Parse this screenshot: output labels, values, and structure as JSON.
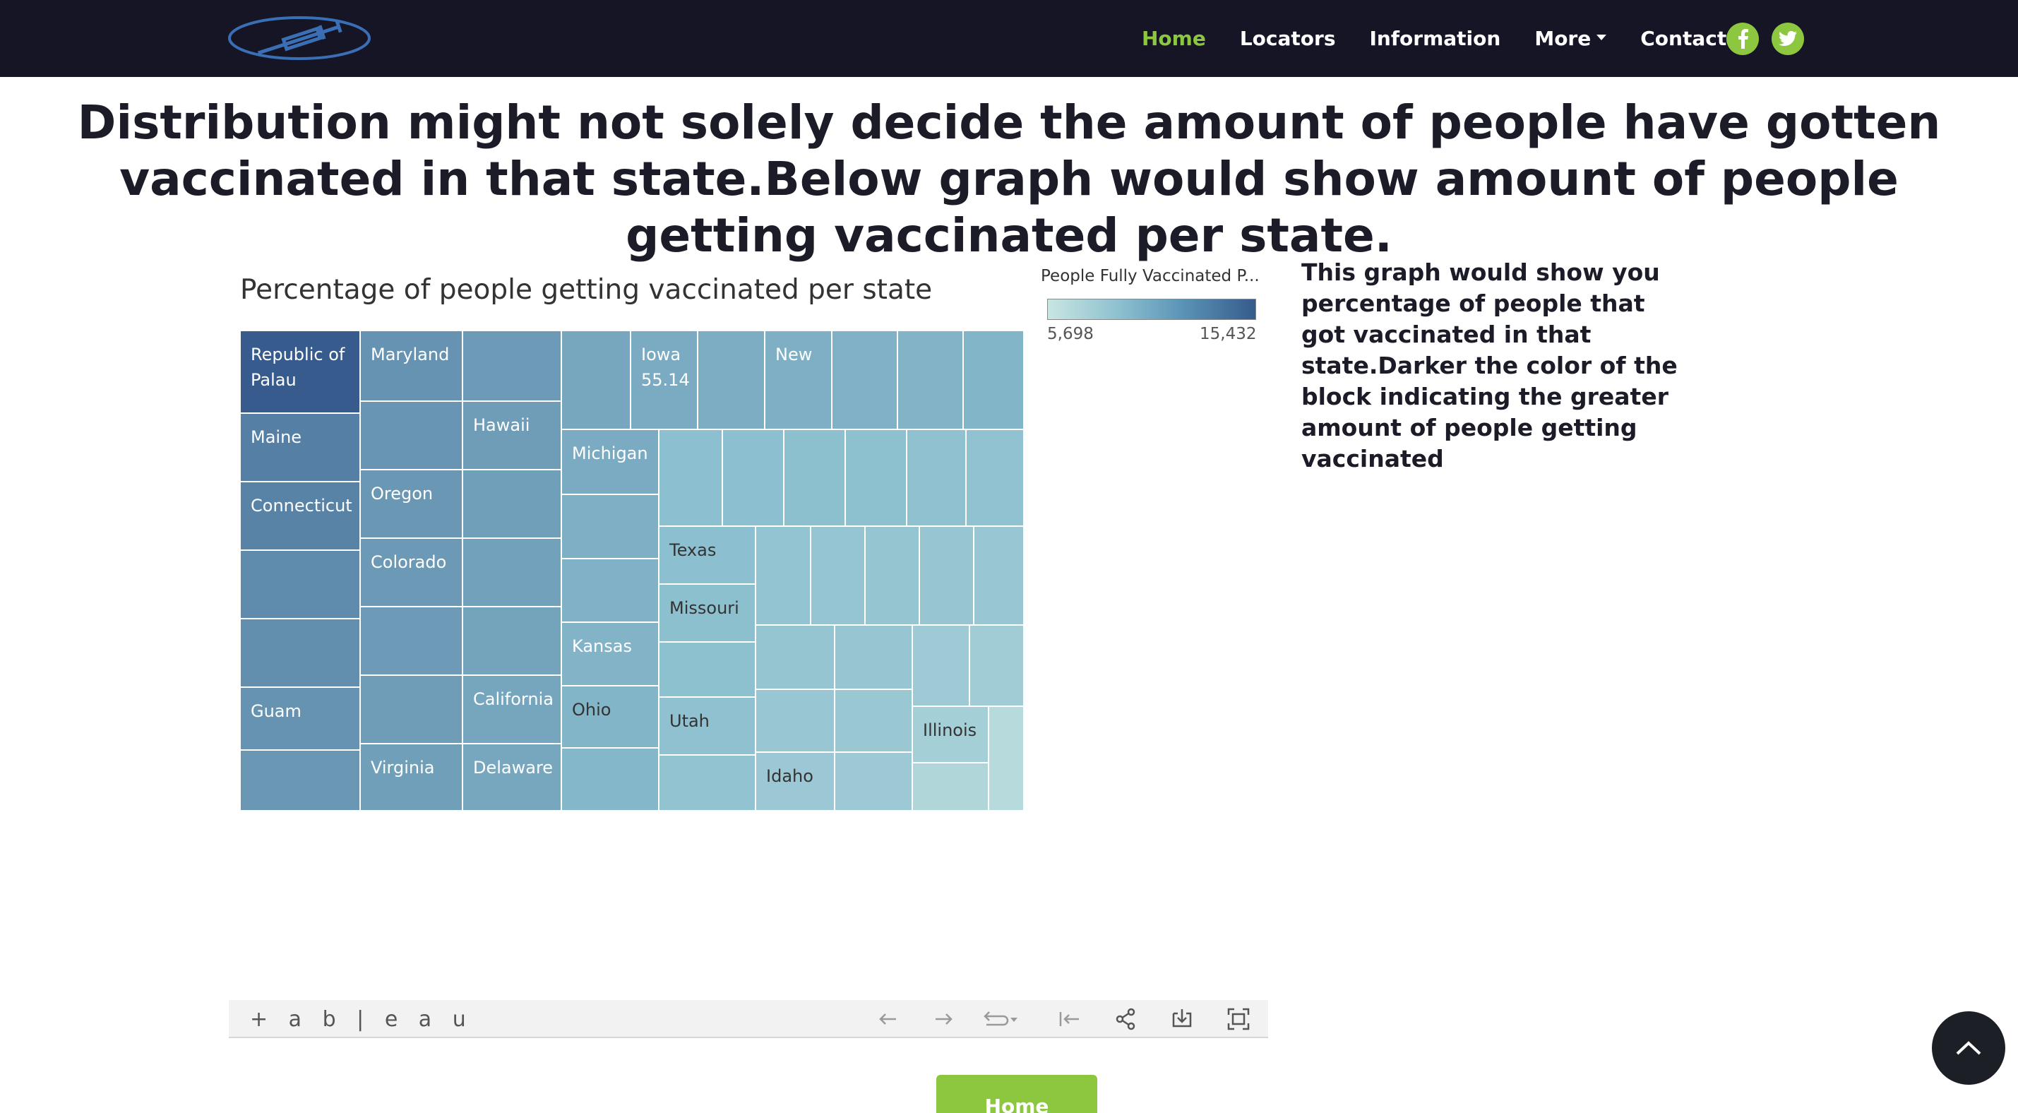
{
  "nav": {
    "links": [
      "Home",
      "Locators",
      "Information",
      "More",
      "Contact"
    ],
    "active": "Home",
    "social_icons": [
      "facebook-icon",
      "twitter-icon"
    ],
    "accent_color": "#8dc63f",
    "background_color": "#151525"
  },
  "headline": "Distribution might not solely decide the amount of people have gotten vaccinated in that state.Below graph would show amount of people getting vaccinated per state.",
  "side_text": "This graph would show you percentage of people that got vaccinated in that state.Darker the color of the block indicating the greater amount of people getting vaccinated",
  "chart_data": {
    "type": "heatmap",
    "title": "Percentage of people getting vaccinated per state",
    "legend": {
      "title": "People Fully Vaccinated P...",
      "min_label": "5,698",
      "max_label": "15,432",
      "color_low": "#c9e6e2",
      "color_high": "#365b8c"
    },
    "visible_labels": [
      "Republic of Palau",
      "Maryland",
      "Iowa 55.14",
      "New",
      "Hawaii",
      "Maine",
      "Oregon",
      "Michigan",
      "Connecticut",
      "Colorado",
      "Texas",
      "Missouri",
      "Kansas",
      "Guam",
      "California",
      "Ohio",
      "Utah",
      "Illinois",
      "Virginia",
      "Delaware",
      "Idaho"
    ]
  },
  "toolbar": {
    "brand": "+ a b | e a u",
    "icons": [
      "undo-icon",
      "redo-icon",
      "revert-icon",
      "revert-to-start-icon",
      "share-icon",
      "download-icon",
      "fullscreen-icon"
    ]
  },
  "home_button": "Home",
  "scroll_top_icon": "chevron-up-icon"
}
